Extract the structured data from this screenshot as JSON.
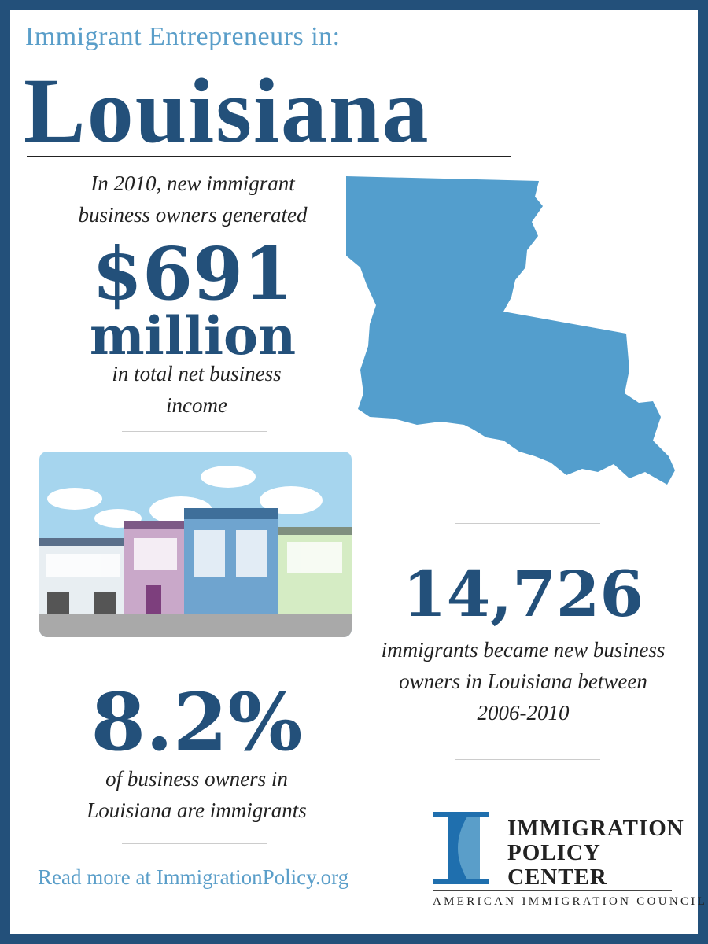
{
  "header": {
    "kicker": "Immigrant Entrepreneurs in:",
    "state": "Louisiana"
  },
  "stat_income": {
    "intro": "In 2010, new immigrant business owners generated",
    "value": "$691",
    "unit": "million",
    "outro": "in total net business income"
  },
  "stat_owners": {
    "value": "14,726",
    "text": "immigrants became new business owners in Louisiana between 2006-2010"
  },
  "stat_share": {
    "value": "8.2%",
    "text": "of business owners in Louisiana are immigrants"
  },
  "footer": {
    "read_more": "Read more at ImmigrationPolicy.org"
  },
  "logo": {
    "line1": "IMMIGRATION",
    "line2": "POLICY",
    "line3": "CENTER",
    "council": "AMERICAN IMMIGRATION COUNCIL"
  },
  "colors": {
    "dark_blue": "#23507a",
    "light_blue": "#5a9ec9",
    "map_blue": "#539ecd"
  }
}
